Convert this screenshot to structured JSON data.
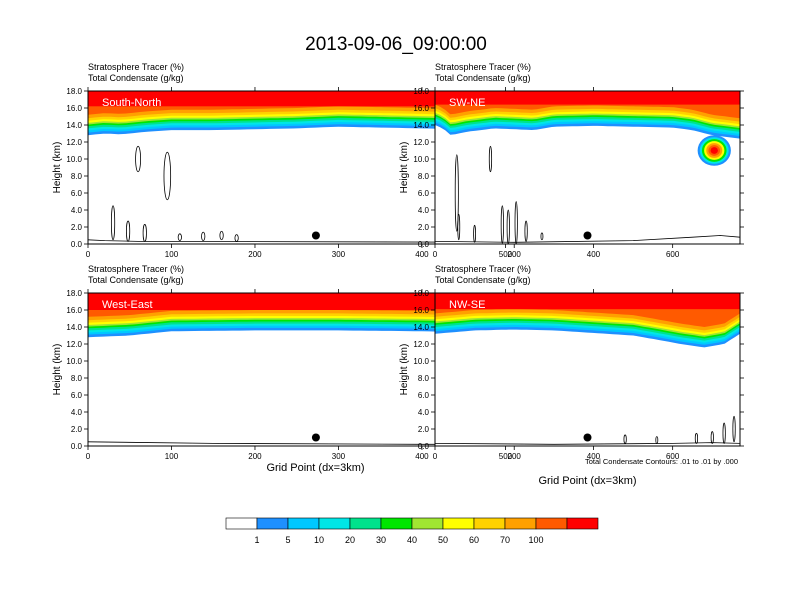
{
  "title": "2013-09-06_09:00:00",
  "colors": {
    "bands": [
      "#ffffff",
      "#1e90ff",
      "#00c8ff",
      "#00e6e6",
      "#00e28c",
      "#00e600",
      "#a0e632",
      "#ffff00",
      "#ffd200",
      "#ffa000",
      "#ff5a00",
      "#ff0000"
    ],
    "contour": "#000000",
    "label_text": "#ffffff"
  },
  "chart_data": [
    {
      "type": "heatmap",
      "label": "South-North",
      "header_line1": "Stratosphere Tracer   (%)",
      "header_line2": "Total Condensate   (g/kg)",
      "ylabel": "Height (km)",
      "xlabel": "",
      "xlim": [
        0,
        545
      ],
      "ylim": [
        0,
        18
      ],
      "xticks": [
        "0",
        "100",
        "200",
        "300",
        "400",
        "500"
      ],
      "yticks": [
        "0.0",
        "2.0",
        "4.0",
        "6.0",
        "8.0",
        "10.0",
        "12.0",
        "14.0",
        "16.0",
        "18.0"
      ],
      "marker_x": 273,
      "marker_y": 1.0,
      "tracer_base_km": [
        [
          0,
          12.8
        ],
        [
          20,
          13.0
        ],
        [
          40,
          12.9
        ],
        [
          70,
          13.2
        ],
        [
          100,
          13.4
        ],
        [
          150,
          13.4
        ],
        [
          200,
          13.5
        ],
        [
          250,
          13.6
        ],
        [
          300,
          13.8
        ],
        [
          350,
          13.7
        ],
        [
          400,
          13.6
        ],
        [
          450,
          13.5
        ],
        [
          500,
          13.4
        ],
        [
          520,
          13.0
        ],
        [
          545,
          11.8
        ]
      ],
      "terrain_km": [
        [
          0,
          0.5
        ],
        [
          20,
          0.4
        ],
        [
          60,
          0.3
        ],
        [
          545,
          0.2
        ]
      ],
      "contours": [
        {
          "x": 60,
          "y": 10.0,
          "rx": 3,
          "ry": 1.5
        },
        {
          "x": 95,
          "y": 8.0,
          "rx": 4,
          "ry": 2.8
        },
        {
          "x": 30,
          "y": 2.5,
          "rx": 2,
          "ry": 2.0
        },
        {
          "x": 48,
          "y": 1.5,
          "rx": 2,
          "ry": 1.2
        },
        {
          "x": 68,
          "y": 1.3,
          "rx": 2,
          "ry": 1.0
        },
        {
          "x": 110,
          "y": 0.8,
          "rx": 2,
          "ry": 0.4
        },
        {
          "x": 138,
          "y": 0.9,
          "rx": 2,
          "ry": 0.5
        },
        {
          "x": 160,
          "y": 1.0,
          "rx": 2,
          "ry": 0.5
        },
        {
          "x": 178,
          "y": 0.7,
          "rx": 2,
          "ry": 0.4
        }
      ],
      "blob": null
    },
    {
      "type": "heatmap",
      "label": "SW-NE",
      "header_line1": "Stratosphere Tracer   (%)",
      "header_line2": "Total Condensate   (g/kg)",
      "ylabel": "Height (km)",
      "xlabel": "",
      "xlim": [
        0,
        770
      ],
      "ylim": [
        0,
        18
      ],
      "xticks": [
        "0",
        "200",
        "400",
        "600"
      ],
      "yticks": [
        "0.0",
        "2.0",
        "4.0",
        "6.0",
        "8.0",
        "10.0",
        "12.0",
        "14.0",
        "16.0",
        "18.0"
      ],
      "marker_x": 385,
      "marker_y": 1.0,
      "tracer_base_km": [
        [
          0,
          14.0
        ],
        [
          20,
          13.6
        ],
        [
          40,
          12.8
        ],
        [
          80,
          13.2
        ],
        [
          150,
          13.6
        ],
        [
          250,
          13.4
        ],
        [
          300,
          13.8
        ],
        [
          400,
          13.9
        ],
        [
          500,
          13.8
        ],
        [
          600,
          13.7
        ],
        [
          650,
          13.4
        ],
        [
          700,
          12.8
        ],
        [
          770,
          12.4
        ]
      ],
      "terrain_km": [
        [
          0,
          0.3
        ],
        [
          200,
          0.2
        ],
        [
          500,
          0.4
        ],
        [
          650,
          0.8
        ],
        [
          720,
          1.0
        ],
        [
          770,
          0.8
        ]
      ],
      "contours": [
        {
          "x": 55,
          "y": 6.0,
          "rx": 4,
          "ry": 4.5
        },
        {
          "x": 140,
          "y": 10.0,
          "rx": 3,
          "ry": 1.5
        },
        {
          "x": 60,
          "y": 2.0,
          "rx": 2,
          "ry": 1.5
        },
        {
          "x": 100,
          "y": 1.2,
          "rx": 2,
          "ry": 1.0
        },
        {
          "x": 170,
          "y": 2.3,
          "rx": 3,
          "ry": 2.2
        },
        {
          "x": 185,
          "y": 2.0,
          "rx": 3,
          "ry": 2.0
        },
        {
          "x": 205,
          "y": 2.5,
          "rx": 3,
          "ry": 2.5
        },
        {
          "x": 230,
          "y": 1.5,
          "rx": 3,
          "ry": 1.2
        },
        {
          "x": 270,
          "y": 0.9,
          "rx": 2,
          "ry": 0.4
        }
      ],
      "blob": {
        "x": 705,
        "y": 11.0,
        "rx": 42,
        "ry": 1.8
      }
    },
    {
      "type": "heatmap",
      "label": "West-East",
      "header_line1": "Stratosphere Tracer   (%)",
      "header_line2": "Total Condensate   (g/kg)",
      "ylabel": "Height (km)",
      "xlabel": "Grid Point (dx=3km)",
      "xlim": [
        0,
        545
      ],
      "ylim": [
        0,
        18
      ],
      "xticks": [
        "0",
        "100",
        "200",
        "300",
        "400",
        "500"
      ],
      "yticks": [
        "0.0",
        "2.0",
        "4.0",
        "6.0",
        "8.0",
        "10.0",
        "12.0",
        "14.0",
        "16.0",
        "18.0"
      ],
      "marker_x": 273,
      "marker_y": 1.0,
      "tracer_base_km": [
        [
          0,
          12.8
        ],
        [
          50,
          13.0
        ],
        [
          100,
          13.5
        ],
        [
          200,
          13.6
        ],
        [
          300,
          13.6
        ],
        [
          400,
          13.5
        ],
        [
          450,
          13.4
        ],
        [
          490,
          13.0
        ],
        [
          510,
          12.5
        ],
        [
          530,
          13.0
        ],
        [
          545,
          12.3
        ]
      ],
      "terrain_km": [
        [
          0,
          0.5
        ],
        [
          150,
          0.3
        ],
        [
          400,
          0.2
        ],
        [
          545,
          0.2
        ]
      ],
      "contours": [
        {
          "x": 505,
          "y": 9.0,
          "rx": 8,
          "ry": 3.6
        },
        {
          "x": 518,
          "y": 3.5,
          "rx": 4,
          "ry": 2.5
        }
      ],
      "blob": null
    },
    {
      "type": "heatmap",
      "label": "NW-SE",
      "header_line1": "Stratosphere Tracer   (%)",
      "header_line2": "Total Condensate   (g/kg)",
      "ylabel": "Height (km)",
      "xlabel": "Grid Point (dx=3km)",
      "xlim": [
        0,
        770
      ],
      "ylim": [
        0,
        18
      ],
      "xticks": [
        "0",
        "200",
        "400",
        "600"
      ],
      "yticks": [
        "0.0",
        "2.0",
        "4.0",
        "6.0",
        "8.0",
        "10.0",
        "12.0",
        "14.0",
        "16.0",
        "18.0"
      ],
      "marker_x": 385,
      "marker_y": 1.0,
      "tracer_base_km": [
        [
          0,
          13.2
        ],
        [
          100,
          13.6
        ],
        [
          200,
          13.7
        ],
        [
          300,
          13.6
        ],
        [
          400,
          13.3
        ],
        [
          500,
          13.0
        ],
        [
          550,
          12.6
        ],
        [
          620,
          12.0
        ],
        [
          680,
          11.6
        ],
        [
          730,
          12.0
        ],
        [
          770,
          13.2
        ]
      ],
      "terrain_km": [
        [
          0,
          0.3
        ],
        [
          300,
          0.2
        ],
        [
          600,
          0.3
        ],
        [
          700,
          0.4
        ],
        [
          770,
          0.3
        ]
      ],
      "contours": [
        {
          "x": 480,
          "y": 0.8,
          "rx": 3,
          "ry": 0.5
        },
        {
          "x": 560,
          "y": 0.7,
          "rx": 2,
          "ry": 0.4
        },
        {
          "x": 660,
          "y": 0.9,
          "rx": 3,
          "ry": 0.6
        },
        {
          "x": 700,
          "y": 1.0,
          "rx": 3,
          "ry": 0.7
        },
        {
          "x": 730,
          "y": 1.5,
          "rx": 3,
          "ry": 1.2
        },
        {
          "x": 755,
          "y": 2.0,
          "rx": 3,
          "ry": 1.5
        }
      ],
      "blob": null
    }
  ],
  "footnote": "Total Condensate Contours: .01 to .01 by .000",
  "colorbar": {
    "labels": [
      "1",
      "5",
      "10",
      "20",
      "30",
      "40",
      "50",
      "60",
      "70",
      "100"
    ]
  }
}
